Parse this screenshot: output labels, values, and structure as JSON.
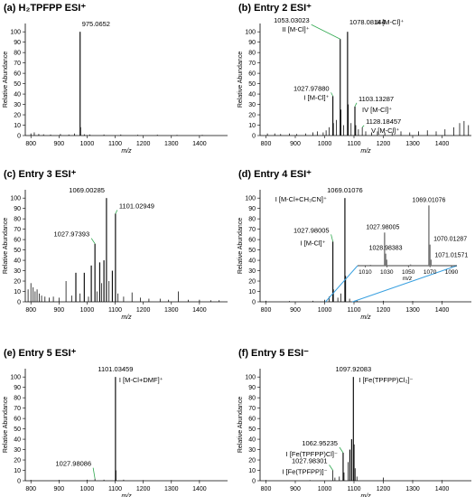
{
  "chart_data": [
    {
      "type": "line",
      "panel": "(a)",
      "title": "H₂TPFPP  ESI⁺",
      "xlabel": "m/z",
      "ylabel": "Relative Abundance",
      "xlim": [
        780,
        1500
      ],
      "ylim": [
        0,
        108
      ],
      "xticks": [
        800,
        900,
        1000,
        1100,
        1200,
        1300,
        1400
      ],
      "yticks": [
        0,
        10,
        20,
        30,
        40,
        50,
        60,
        70,
        80,
        90,
        100
      ],
      "peaks": [
        {
          "mz": 800,
          "h": 2
        },
        {
          "mz": 812,
          "h": 3
        },
        {
          "mz": 828,
          "h": 1.5
        },
        {
          "mz": 845,
          "h": 1.2
        },
        {
          "mz": 870,
          "h": 1
        },
        {
          "mz": 905,
          "h": 1.5
        },
        {
          "mz": 935,
          "h": 1
        },
        {
          "mz": 955,
          "h": 2
        },
        {
          "mz": 975.07,
          "h": 100
        },
        {
          "mz": 977,
          "h": 8
        },
        {
          "mz": 990,
          "h": 1.2
        },
        {
          "mz": 1010,
          "h": 1
        },
        {
          "mz": 1060,
          "h": 1
        },
        {
          "mz": 1120,
          "h": 1
        },
        {
          "mz": 1180,
          "h": 0.8
        },
        {
          "mz": 1250,
          "h": 0.8
        },
        {
          "mz": 1320,
          "h": 0.6
        },
        {
          "mz": 1410,
          "h": 0.6
        }
      ],
      "labels": [
        {
          "mz": 975.07,
          "h": 100,
          "text": "975.0652"
        }
      ]
    },
    {
      "type": "line",
      "panel": "(b)",
      "title": "Entry 2  ESI⁺",
      "xlabel": "m/z",
      "ylabel": "Relative Abundance",
      "xlim": [
        780,
        1500
      ],
      "ylim": [
        0,
        108
      ],
      "xticks": [
        800,
        900,
        1000,
        1100,
        1200,
        1300,
        1400
      ],
      "yticks": [
        0,
        10,
        20,
        30,
        40,
        50,
        60,
        70,
        80,
        90,
        100
      ],
      "peaks": [
        {
          "mz": 805,
          "h": 2
        },
        {
          "mz": 830,
          "h": 2
        },
        {
          "mz": 850,
          "h": 1.5
        },
        {
          "mz": 880,
          "h": 2
        },
        {
          "mz": 905,
          "h": 1.5
        },
        {
          "mz": 935,
          "h": 2
        },
        {
          "mz": 960,
          "h": 3
        },
        {
          "mz": 975,
          "h": 4
        },
        {
          "mz": 995,
          "h": 3
        },
        {
          "mz": 1005,
          "h": 5
        },
        {
          "mz": 1015,
          "h": 8
        },
        {
          "mz": 1027.98,
          "h": 38
        },
        {
          "mz": 1030,
          "h": 12
        },
        {
          "mz": 1040,
          "h": 15
        },
        {
          "mz": 1053.03,
          "h": 93
        },
        {
          "mz": 1055,
          "h": 25
        },
        {
          "mz": 1065,
          "h": 10
        },
        {
          "mz": 1078.08,
          "h": 100
        },
        {
          "mz": 1080,
          "h": 30
        },
        {
          "mz": 1090,
          "h": 12
        },
        {
          "mz": 1103.13,
          "h": 28
        },
        {
          "mz": 1106,
          "h": 10
        },
        {
          "mz": 1115,
          "h": 6
        },
        {
          "mz": 1128.18,
          "h": 8
        },
        {
          "mz": 1140,
          "h": 4
        },
        {
          "mz": 1160,
          "h": 3
        },
        {
          "mz": 1180,
          "h": 4
        },
        {
          "mz": 1205,
          "h": 3
        },
        {
          "mz": 1230,
          "h": 3
        },
        {
          "mz": 1260,
          "h": 4
        },
        {
          "mz": 1290,
          "h": 3
        },
        {
          "mz": 1320,
          "h": 4
        },
        {
          "mz": 1350,
          "h": 5
        },
        {
          "mz": 1380,
          "h": 4
        },
        {
          "mz": 1410,
          "h": 6
        },
        {
          "mz": 1440,
          "h": 8
        },
        {
          "mz": 1460,
          "h": 12
        },
        {
          "mz": 1475,
          "h": 14
        },
        {
          "mz": 1490,
          "h": 10
        }
      ],
      "labels": [
        {
          "mz": 1053.03,
          "h": 93,
          "text": "1053.03023"
        },
        {
          "mz": 1078.08,
          "h": 100,
          "text": "1078.08144"
        },
        {
          "mz": 1027.98,
          "h": 38,
          "text": "1027.97880"
        },
        {
          "mz": 1103.13,
          "h": 28,
          "text": "1103.13287"
        },
        {
          "mz": 1128.18,
          "h": 8,
          "text": "1128.18457"
        },
        {
          "mz": 1053.03,
          "h": 93,
          "text": "II [M-Cl]⁺"
        },
        {
          "mz": 1078.08,
          "h": 100,
          "text": "III [M-Cl]⁺"
        },
        {
          "mz": 1027.98,
          "h": 38,
          "text": "I [M-Cl]⁺"
        },
        {
          "mz": 1103.13,
          "h": 28,
          "text": "IV [M-Cl]⁺"
        },
        {
          "mz": 1128.18,
          "h": 8,
          "text": "V [M-Cl]⁺"
        }
      ]
    },
    {
      "type": "line",
      "panel": "(c)",
      "title": "Entry 3  ESI⁺",
      "xlabel": "m/z",
      "ylabel": "Relative Abundance",
      "xlim": [
        780,
        1500
      ],
      "ylim": [
        0,
        108
      ],
      "xticks": [
        800,
        900,
        1000,
        1100,
        1200,
        1300,
        1400
      ],
      "yticks": [
        0,
        10,
        20,
        30,
        40,
        50,
        60,
        70,
        80,
        90,
        100
      ],
      "peaks": [
        {
          "mz": 790,
          "h": 12
        },
        {
          "mz": 800,
          "h": 18
        },
        {
          "mz": 808,
          "h": 14
        },
        {
          "mz": 815,
          "h": 10
        },
        {
          "mz": 822,
          "h": 12
        },
        {
          "mz": 830,
          "h": 8
        },
        {
          "mz": 838,
          "h": 6
        },
        {
          "mz": 850,
          "h": 5
        },
        {
          "mz": 865,
          "h": 4
        },
        {
          "mz": 880,
          "h": 5
        },
        {
          "mz": 900,
          "h": 4
        },
        {
          "mz": 925,
          "h": 20
        },
        {
          "mz": 945,
          "h": 6
        },
        {
          "mz": 960,
          "h": 28
        },
        {
          "mz": 975,
          "h": 8
        },
        {
          "mz": 990,
          "h": 28
        },
        {
          "mz": 1005,
          "h": 5
        },
        {
          "mz": 1015,
          "h": 35
        },
        {
          "mz": 1027.97,
          "h": 56
        },
        {
          "mz": 1035,
          "h": 10
        },
        {
          "mz": 1045,
          "h": 38
        },
        {
          "mz": 1052,
          "h": 18
        },
        {
          "mz": 1060,
          "h": 40
        },
        {
          "mz": 1069.0,
          "h": 100
        },
        {
          "mz": 1078,
          "h": 20
        },
        {
          "mz": 1090,
          "h": 30
        },
        {
          "mz": 1101.03,
          "h": 85
        },
        {
          "mz": 1110,
          "h": 8
        },
        {
          "mz": 1130,
          "h": 5
        },
        {
          "mz": 1160,
          "h": 9
        },
        {
          "mz": 1190,
          "h": 4
        },
        {
          "mz": 1220,
          "h": 3
        },
        {
          "mz": 1260,
          "h": 3
        },
        {
          "mz": 1290,
          "h": 2
        },
        {
          "mz": 1325,
          "h": 10
        },
        {
          "mz": 1360,
          "h": 2
        },
        {
          "mz": 1400,
          "h": 2
        },
        {
          "mz": 1440,
          "h": 1.5
        },
        {
          "mz": 1470,
          "h": 1.5
        }
      ],
      "labels": [
        {
          "mz": 1069.0,
          "h": 100,
          "text": "1069.00285"
        },
        {
          "mz": 1101.03,
          "h": 85,
          "text": "1101.02949"
        },
        {
          "mz": 1027.97,
          "h": 56,
          "text": "1027.97393"
        }
      ]
    },
    {
      "type": "line",
      "panel": "(d)",
      "title": "Entry 4  ESI⁺",
      "xlabel": "m/z",
      "ylabel": "Relative Abundance",
      "xlim": [
        780,
        1500
      ],
      "ylim": [
        0,
        108
      ],
      "xticks": [
        800,
        900,
        1000,
        1100,
        1200,
        1300,
        1400
      ],
      "yticks": [
        0,
        10,
        20,
        30,
        40,
        50,
        60,
        70,
        80,
        90,
        100
      ],
      "peaks": [
        {
          "mz": 800,
          "h": 1
        },
        {
          "mz": 880,
          "h": 0.8
        },
        {
          "mz": 960,
          "h": 1
        },
        {
          "mz": 1000,
          "h": 2
        },
        {
          "mz": 1015,
          "h": 5
        },
        {
          "mz": 1027.98,
          "h": 58
        },
        {
          "mz": 1030,
          "h": 12
        },
        {
          "mz": 1045,
          "h": 4
        },
        {
          "mz": 1055,
          "h": 8
        },
        {
          "mz": 1069.01,
          "h": 100
        },
        {
          "mz": 1071,
          "h": 25
        },
        {
          "mz": 1085,
          "h": 3
        },
        {
          "mz": 1110,
          "h": 1.5
        },
        {
          "mz": 1200,
          "h": 1
        },
        {
          "mz": 1300,
          "h": 0.8
        },
        {
          "mz": 1400,
          "h": 0.8
        }
      ],
      "labels": [
        {
          "mz": 1069.01,
          "h": 100,
          "text": "1069.01076"
        },
        {
          "mz": 1027.98,
          "h": 58,
          "text": "1027.98005"
        },
        {
          "mz": 1069.01,
          "h": 100,
          "text": "I [M-Cl+CH₃CN]⁺"
        },
        {
          "mz": 1027.98,
          "h": 58,
          "text": "I [M-Cl]⁺"
        }
      ],
      "inset": {
        "xlabel": "m/z",
        "xlim": [
          1003,
          1095
        ],
        "ylim": [
          0,
          105
        ],
        "xticks": [
          1010,
          1030,
          1050,
          1070,
          1090
        ],
        "peaks": [
          {
            "mz": 1027.98,
            "h": 55
          },
          {
            "mz": 1028.98,
            "h": 20
          },
          {
            "mz": 1029.98,
            "h": 10
          },
          {
            "mz": 1069.01,
            "h": 100
          },
          {
            "mz": 1070.01,
            "h": 35
          },
          {
            "mz": 1071.02,
            "h": 10
          },
          {
            "mz": 1052,
            "h": 2
          },
          {
            "mz": 1015,
            "h": 1.5
          }
        ],
        "labels": [
          {
            "mz": 1069.01,
            "h": 100,
            "text": "1069.01076"
          },
          {
            "mz": 1027.98,
            "h": 55,
            "text": "1027.98005"
          },
          {
            "mz": 1070.01,
            "h": 35,
            "text": "1070.01287"
          },
          {
            "mz": 1028.98,
            "h": 20,
            "text": "1028.98383"
          },
          {
            "mz": 1071.02,
            "h": 10,
            "text": "1071.01571"
          }
        ]
      }
    },
    {
      "type": "line",
      "panel": "(e)",
      "title": "Entry 5  ESI⁺",
      "xlabel": "m/z",
      "ylabel": "Relative Abundance",
      "xlim": [
        780,
        1500
      ],
      "ylim": [
        0,
        108
      ],
      "xticks": [
        800,
        900,
        1000,
        1100,
        1200,
        1300,
        1400
      ],
      "yticks": [
        0,
        10,
        20,
        30,
        40,
        50,
        60,
        70,
        80,
        90,
        100
      ],
      "peaks": [
        {
          "mz": 800,
          "h": 0.8
        },
        {
          "mz": 900,
          "h": 0.8
        },
        {
          "mz": 1000,
          "h": 1
        },
        {
          "mz": 1027.98,
          "h": 2
        },
        {
          "mz": 1060,
          "h": 1
        },
        {
          "mz": 1101.03,
          "h": 100
        },
        {
          "mz": 1103,
          "h": 10
        },
        {
          "mz": 1130,
          "h": 1
        },
        {
          "mz": 1200,
          "h": 0.6
        },
        {
          "mz": 1300,
          "h": 0.6
        },
        {
          "mz": 1400,
          "h": 0.6
        }
      ],
      "labels": [
        {
          "mz": 1101.03,
          "h": 100,
          "text": "1101.03459"
        },
        {
          "mz": 1027.98,
          "h": 2,
          "text": "1027.98086"
        },
        {
          "mz": 1101.03,
          "h": 100,
          "text": "I [M-Cl+DMF]⁺"
        }
      ]
    },
    {
      "type": "line",
      "panel": "(f)",
      "title": "Entry 5  ESI⁻",
      "xlabel": "m/z",
      "ylabel": "Relative Abundance",
      "xlim": [
        780,
        1500
      ],
      "ylim": [
        0,
        108
      ],
      "xticks": [
        800,
        900,
        1000,
        1100,
        1200,
        1300,
        1400
      ],
      "yticks": [
        0,
        10,
        20,
        30,
        40,
        50,
        60,
        70,
        80,
        90,
        100
      ],
      "peaks": [
        {
          "mz": 800,
          "h": 0.6
        },
        {
          "mz": 950,
          "h": 0.6
        },
        {
          "mz": 1027.98,
          "h": 10
        },
        {
          "mz": 1035,
          "h": 3
        },
        {
          "mz": 1050,
          "h": 4
        },
        {
          "mz": 1062.95,
          "h": 27
        },
        {
          "mz": 1066,
          "h": 8
        },
        {
          "mz": 1080,
          "h": 18
        },
        {
          "mz": 1086,
          "h": 30
        },
        {
          "mz": 1092,
          "h": 40
        },
        {
          "mz": 1097.92,
          "h": 100
        },
        {
          "mz": 1100,
          "h": 35
        },
        {
          "mz": 1104,
          "h": 12
        },
        {
          "mz": 1110,
          "h": 4
        },
        {
          "mz": 1200,
          "h": 3
        },
        {
          "mz": 1300,
          "h": 0.6
        },
        {
          "mz": 1400,
          "h": 0.6
        }
      ],
      "labels": [
        {
          "mz": 1097.92,
          "h": 100,
          "text": "1097.92083"
        },
        {
          "mz": 1062.95,
          "h": 27,
          "text": "1062.95235"
        },
        {
          "mz": 1027.98,
          "h": 10,
          "text": "1027.98301"
        },
        {
          "mz": 1097.92,
          "h": 100,
          "text": "I [Fe(TPFPP)Cl₂]⁻"
        },
        {
          "mz": 1062.95,
          "h": 27,
          "text": "I [Fe(TPFPP)Cl]⁻"
        },
        {
          "mz": 1027.98,
          "h": 10,
          "text": "I [Fe(TPFPP)]⁻"
        }
      ]
    }
  ]
}
